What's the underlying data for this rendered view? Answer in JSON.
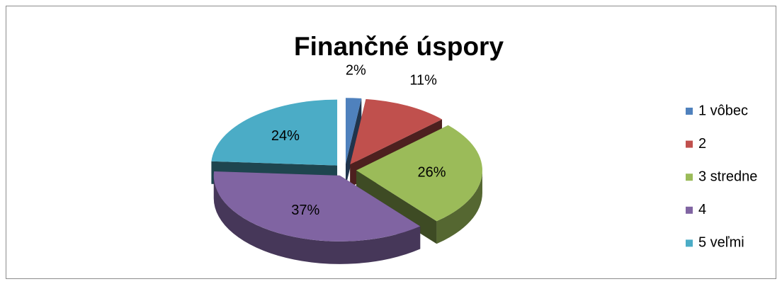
{
  "chart_data": {
    "type": "pie",
    "title": "Finančné úspory",
    "categories": [
      "1 vôbec",
      "2",
      "3 stredne",
      "4",
      "5 veľmi"
    ],
    "values": [
      2,
      11,
      26,
      37,
      24
    ],
    "value_labels": [
      "2%",
      "11%",
      "26%",
      "37%",
      "24%"
    ],
    "colors": [
      "#4f81bd",
      "#c0504d",
      "#9bbb59",
      "#8064a2",
      "#4bacc6"
    ],
    "legend": "right"
  }
}
